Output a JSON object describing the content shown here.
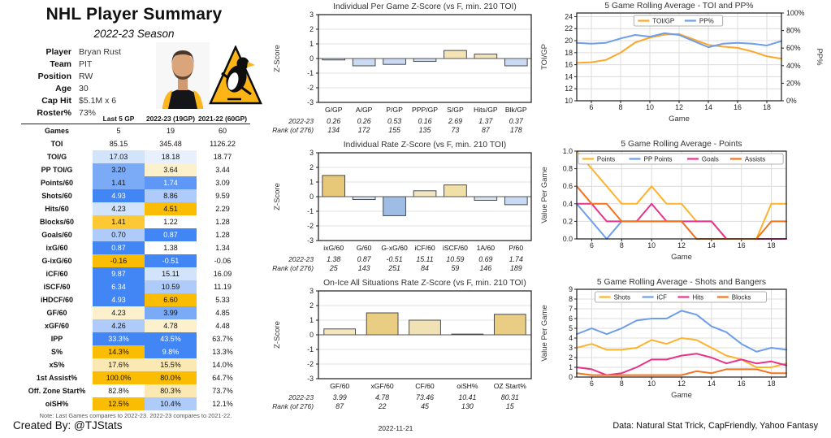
{
  "header": {
    "title": "NHL Player Summary",
    "subtitle": "2022-23 Season"
  },
  "player_info": {
    "rows": [
      {
        "label": "Player",
        "value": "Bryan Rust"
      },
      {
        "label": "Team",
        "value": "PIT"
      },
      {
        "label": "Position",
        "value": "RW"
      },
      {
        "label": "Age",
        "value": "30"
      },
      {
        "label": "Cap Hit",
        "value": "$5.1M x 6"
      },
      {
        "label": "Roster%",
        "value": "73%"
      }
    ]
  },
  "table": {
    "columns": [
      "",
      "Last 5 GP",
      "2022-23 (19GP)",
      "2021-22 (60GP)"
    ],
    "rows": [
      {
        "label": "Games",
        "values": [
          "5",
          "19",
          "60"
        ],
        "colors": [
          null,
          null,
          null
        ]
      },
      {
        "label": "TOI",
        "values": [
          "85.15",
          "345.48",
          "1126.22"
        ],
        "colors": [
          null,
          null,
          null
        ]
      },
      {
        "label": "TOI/G",
        "values": [
          "17.03",
          "18.18",
          "18.77"
        ],
        "colors": [
          "b2",
          "b1",
          null
        ]
      },
      {
        "label": "PP TOI/G",
        "values": [
          "3.20",
          "3.64",
          "3.44"
        ],
        "colors": [
          "b4",
          "y1",
          null
        ]
      },
      {
        "label": "Points/60",
        "values": [
          "1.41",
          "1.74",
          "3.09"
        ],
        "colors": [
          "b4",
          "b5",
          null
        ]
      },
      {
        "label": "Shots/60",
        "values": [
          "4.93",
          "8.86",
          "9.59"
        ],
        "colors": [
          "b6",
          "b3",
          null
        ]
      },
      {
        "label": "Hits/60",
        "values": [
          "4.23",
          "4.51",
          "2.29"
        ],
        "colors": [
          "b2",
          "y4",
          null
        ]
      },
      {
        "label": "Blocks/60",
        "values": [
          "1.41",
          "1.22",
          "1.28"
        ],
        "colors": [
          "y3",
          null,
          null
        ]
      },
      {
        "label": "Goals/60",
        "values": [
          "0.70",
          "0.87",
          "1.28"
        ],
        "colors": [
          "b3",
          "b6",
          null
        ]
      },
      {
        "label": "ixG/60",
        "values": [
          "0.87",
          "1.38",
          "1.34"
        ],
        "colors": [
          "b6",
          null,
          null
        ]
      },
      {
        "label": "G-ixG/60",
        "values": [
          "-0.16",
          "-0.51",
          "-0.06"
        ],
        "colors": [
          "y4",
          "b6",
          null
        ]
      },
      {
        "label": "iCF/60",
        "values": [
          "9.87",
          "15.11",
          "16.09"
        ],
        "colors": [
          "b6",
          "b2",
          null
        ]
      },
      {
        "label": "iSCF/60",
        "values": [
          "6.34",
          "10.59",
          "11.19"
        ],
        "colors": [
          "b6",
          "b3",
          null
        ]
      },
      {
        "label": "iHDCF/60",
        "values": [
          "4.93",
          "6.60",
          "5.33"
        ],
        "colors": [
          "b6",
          "y4",
          null
        ]
      },
      {
        "label": "GF/60",
        "values": [
          "4.23",
          "3.99",
          "4.85"
        ],
        "colors": [
          "y1",
          "b4",
          null
        ]
      },
      {
        "label": "xGF/60",
        "values": [
          "4.26",
          "4.78",
          "4.48"
        ],
        "colors": [
          "b3",
          "y1",
          null
        ]
      },
      {
        "label": "IPP",
        "values": [
          "33.3%",
          "43.5%",
          "63.7%"
        ],
        "colors": [
          "b6",
          "b6",
          null
        ]
      },
      {
        "label": "S%",
        "values": [
          "14.3%",
          "9.8%",
          "13.3%"
        ],
        "colors": [
          "y4",
          "b6",
          null
        ]
      },
      {
        "label": "xS%",
        "values": [
          "17.6%",
          "15.5%",
          "14.0%"
        ],
        "colors": [
          "y2",
          "y2",
          null
        ]
      },
      {
        "label": "1st Assist%",
        "values": [
          "100.0%",
          "80.0%",
          "64.7%"
        ],
        "colors": [
          "y4",
          "y4",
          null
        ]
      },
      {
        "label": "Off. Zone Start%",
        "values": [
          "82.8%",
          "80.3%",
          "73.7%"
        ],
        "colors": [
          null,
          "y2",
          null
        ]
      },
      {
        "label": "oiSH%",
        "values": [
          "12.5%",
          "10.4%",
          "12.1%"
        ],
        "colors": [
          "y4",
          "b3",
          null
        ]
      }
    ],
    "note": "Note: Last Games compares to 2022-23. 2022-23 compares to 2021-22."
  },
  "footer": {
    "created_by": "Created By: @TJStats",
    "date": "2022-11-21",
    "data_credit": "Data: Natural Stat Trick, CapFriendly, Yahoo Fantasy"
  },
  "chart_data": [
    {
      "type": "bar",
      "title": "Individual Per Game Z-Score (vs F, min. 210 TOI)",
      "ylabel": "Z-Score",
      "ylim": [
        -3,
        3
      ],
      "yticks": [
        -3,
        -2,
        -1,
        0,
        1,
        2,
        3
      ],
      "categories": [
        "G/GP",
        "A/GP",
        "P/GP",
        "PPP/GP",
        "S/GP",
        "Hits/GP",
        "Blk/GP"
      ],
      "values": [
        -0.1,
        -0.5,
        -0.4,
        -0.2,
        0.55,
        0.3,
        -0.5
      ],
      "bar_colors": [
        "#ccdcf3",
        "#c9daf2",
        "#c9daf2",
        "#cddcf3",
        "#f3e3b5",
        "#f3e4b8",
        "#c9daf2"
      ],
      "stat_rows": [
        {
          "label": "2022-23",
          "values": [
            "0.26",
            "0.26",
            "0.53",
            "0.16",
            "2.69",
            "1.37",
            "0.37"
          ]
        },
        {
          "label": "Rank (of 276)",
          "values": [
            "134",
            "172",
            "155",
            "135",
            "73",
            "87",
            "178"
          ]
        }
      ]
    },
    {
      "type": "bar",
      "title": "Individual Rate Z-Score (vs F, min. 210 TOI)",
      "ylabel": "Z-Score",
      "ylim": [
        -3,
        3
      ],
      "yticks": [
        -3,
        -2,
        -1,
        0,
        1,
        2,
        3
      ],
      "categories": [
        "ixG/60",
        "G/60",
        "G-xG/60",
        "iCF/60",
        "iSCF/60",
        "1A/60",
        "P/60"
      ],
      "values": [
        1.45,
        -0.2,
        -1.3,
        0.4,
        0.8,
        -0.25,
        -0.55
      ],
      "bar_colors": [
        "#e7c878",
        "#d8e3f2",
        "#9fbce4",
        "#f3e5bd",
        "#f1dfa8",
        "#d3e0f2",
        "#c9daf5"
      ],
      "stat_rows": [
        {
          "label": "2022-23",
          "values": [
            "1.38",
            "0.87",
            "-0.51",
            "15.11",
            "10.59",
            "0.69",
            "1.74"
          ]
        },
        {
          "label": "Rank (of 276)",
          "values": [
            "25",
            "143",
            "251",
            "84",
            "59",
            "146",
            "189"
          ]
        }
      ]
    },
    {
      "type": "bar",
      "title": "On-Ice All Situations Rate Z-Score (vs F, min. 210 TOI)",
      "ylabel": "Z-Score",
      "ylim": [
        -3,
        3
      ],
      "yticks": [
        -3,
        -2,
        -1,
        0,
        1,
        2,
        3
      ],
      "categories": [
        "GF/60",
        "xGF/60",
        "CF/60",
        "oiSH%",
        "OZ Start%"
      ],
      "values": [
        0.4,
        1.5,
        1.0,
        0.05,
        1.4
      ],
      "bar_colors": [
        "#f4e7c0",
        "#e9cd82",
        "#f0e2b4",
        "#f5ecd2",
        "#e9cd85"
      ],
      "stat_rows": [
        {
          "label": "2022-23",
          "values": [
            "3.99",
            "4.78",
            "73.46",
            "10.41",
            "80.31"
          ]
        },
        {
          "label": "Rank (of 276)",
          "values": [
            "87",
            "22",
            "45",
            "130",
            "15"
          ]
        }
      ]
    },
    {
      "type": "line",
      "title": "5 Game Rolling Average - TOI and PP%",
      "xlabel": "Game",
      "ylabel": "TOI/GP",
      "ylabel_right": "PP%",
      "x": [
        5,
        6,
        7,
        8,
        9,
        10,
        11,
        12,
        13,
        14,
        15,
        16,
        17,
        18,
        19
      ],
      "xlim": [
        5,
        19
      ],
      "xticks": [
        6,
        8,
        10,
        12,
        14,
        16,
        18
      ],
      "ylim": [
        10,
        24.6
      ],
      "yticks": [
        "10",
        "12",
        "14",
        "16",
        "18",
        "20",
        "22",
        "24"
      ],
      "ylim_right": [
        0,
        100
      ],
      "yticks_right": [
        "0%",
        "20%",
        "40%",
        "60%",
        "80%",
        "100%"
      ],
      "series": [
        {
          "name": "TOI/GP",
          "color": "#fca72c",
          "axis": "left",
          "values": [
            16.3,
            16.4,
            16.8,
            18.0,
            19.7,
            20.5,
            21.0,
            21.1,
            20.2,
            19.3,
            19.0,
            18.8,
            18.2,
            17.4,
            17.0
          ]
        },
        {
          "name": "PP%",
          "color": "#6d9eeb",
          "axis": "right",
          "values": [
            66,
            65,
            66,
            71,
            75,
            73,
            77,
            75,
            68,
            61,
            65,
            66,
            65,
            63,
            68
          ]
        }
      ]
    },
    {
      "type": "line",
      "title": "5 Game Rolling Average - Points",
      "xlabel": "Game",
      "ylabel": "Value Per Game",
      "x": [
        5,
        6,
        7,
        8,
        9,
        10,
        11,
        12,
        13,
        14,
        15,
        16,
        17,
        18,
        19
      ],
      "xlim": [
        5,
        19
      ],
      "xticks": [
        6,
        8,
        10,
        12,
        14,
        16,
        18
      ],
      "ylim": [
        0,
        1.0
      ],
      "yticks": [
        "0.0",
        "0.2",
        "0.4",
        "0.6",
        "0.8",
        "1.0"
      ],
      "series": [
        {
          "name": "Points",
          "color": "#fdb32b",
          "axis": "left",
          "values": [
            1.0,
            0.8,
            0.6,
            0.4,
            0.4,
            0.6,
            0.4,
            0.4,
            0.2,
            0.2,
            0.0,
            0.0,
            0.0,
            0.4,
            0.4
          ]
        },
        {
          "name": "PP Points",
          "color": "#6d9eeb",
          "axis": "left",
          "values": [
            0.4,
            0.2,
            0.0,
            0.2,
            0.2,
            0.2,
            0.2,
            0.2,
            0.0,
            0.0,
            0.0,
            0.0,
            0.0,
            0.0,
            0.0
          ]
        },
        {
          "name": "Goals",
          "color": "#e8338a",
          "axis": "left",
          "values": [
            0.4,
            0.4,
            0.2,
            0.2,
            0.2,
            0.4,
            0.2,
            0.2,
            0.2,
            0.2,
            0.0,
            0.0,
            0.0,
            0.0,
            0.0
          ]
        },
        {
          "name": "Assists",
          "color": "#f4731f",
          "axis": "left",
          "values": [
            0.6,
            0.4,
            0.4,
            0.2,
            0.2,
            0.2,
            0.2,
            0.2,
            0.0,
            0.0,
            0.0,
            0.0,
            0.0,
            0.2,
            0.2
          ]
        }
      ]
    },
    {
      "type": "line",
      "title": "5 Game Rolling Average - Shots and Bangers",
      "xlabel": "Game",
      "ylabel": "Value Per Game",
      "x": [
        5,
        6,
        7,
        8,
        9,
        10,
        11,
        12,
        13,
        14,
        15,
        16,
        17,
        18,
        19
      ],
      "xlim": [
        5,
        19
      ],
      "xticks": [
        6,
        8,
        10,
        12,
        14,
        16,
        18
      ],
      "ylim": [
        0,
        9
      ],
      "yticks": [
        "0",
        "1",
        "2",
        "3",
        "4",
        "5",
        "6",
        "7",
        "8",
        "9"
      ],
      "series": [
        {
          "name": "Shots",
          "color": "#fdb32b",
          "axis": "left",
          "values": [
            3.0,
            3.4,
            2.8,
            2.8,
            3.0,
            3.8,
            3.4,
            4.0,
            3.8,
            3.0,
            2.2,
            1.8,
            1.0,
            1.0,
            1.4
          ]
        },
        {
          "name": "iCF",
          "color": "#6d9eeb",
          "axis": "left",
          "values": [
            4.4,
            5.0,
            4.4,
            5.0,
            5.8,
            6.0,
            6.0,
            6.8,
            6.4,
            5.2,
            4.6,
            3.4,
            2.6,
            3.0,
            2.8
          ]
        },
        {
          "name": "Hits",
          "color": "#e8338a",
          "axis": "left",
          "values": [
            1.0,
            0.8,
            0.2,
            0.4,
            1.0,
            1.8,
            1.8,
            2.2,
            2.4,
            2.0,
            1.4,
            1.8,
            1.4,
            1.6,
            1.2
          ]
        },
        {
          "name": "Blocks",
          "color": "#f4731f",
          "axis": "left",
          "values": [
            0.4,
            0.2,
            0.2,
            0.2,
            0.2,
            0.2,
            0.2,
            0.2,
            0.6,
            0.4,
            0.8,
            0.8,
            0.8,
            0.4,
            0.4
          ]
        }
      ]
    }
  ]
}
